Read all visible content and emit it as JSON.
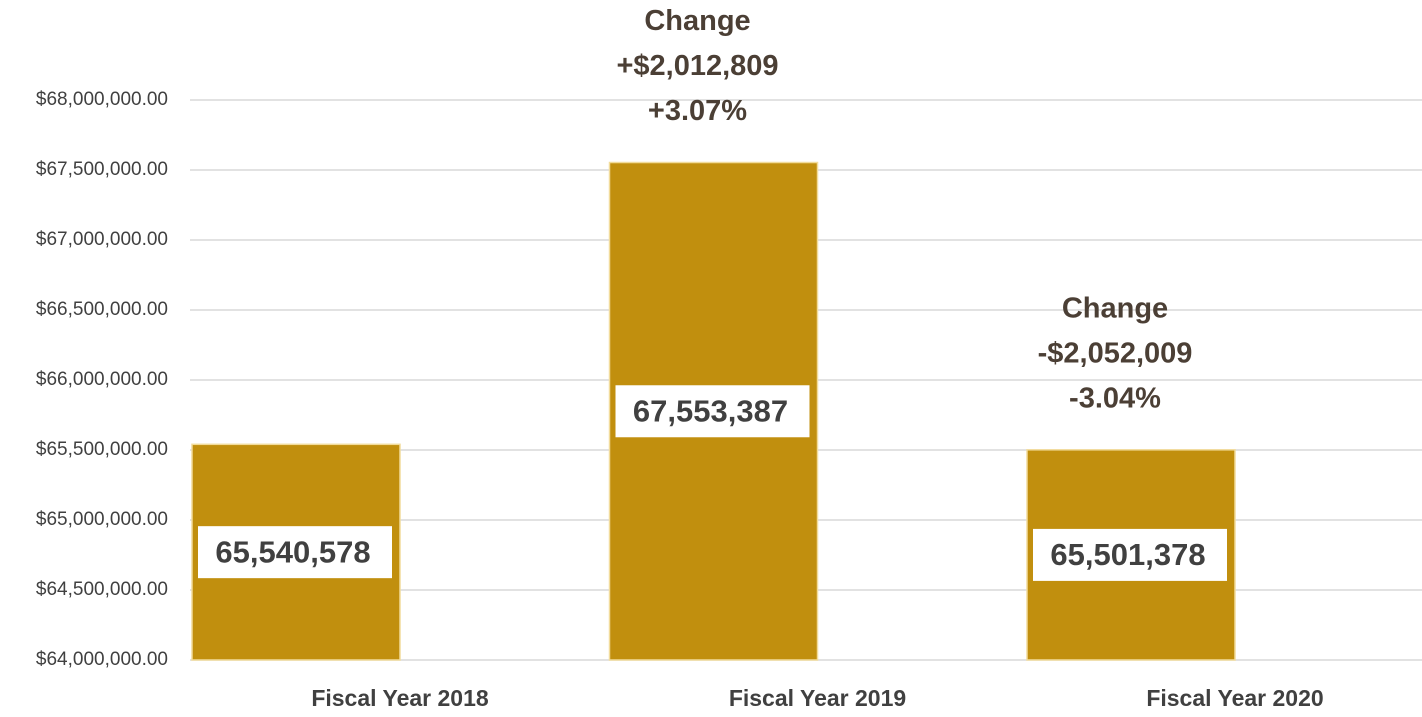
{
  "chart_data": {
    "type": "bar",
    "categories": [
      "Fiscal Year 2018",
      "Fiscal Year 2019",
      "Fiscal Year 2020"
    ],
    "values": [
      65540578,
      67553387,
      65501378
    ],
    "value_labels": [
      "65,540,578",
      "67,553,387",
      "65,501,378"
    ],
    "color": "#c18f0e",
    "ylim": [
      64000000,
      68000000
    ],
    "yticks": [
      {
        "value": 64000000,
        "label": "$64,000,000.00"
      },
      {
        "value": 64500000,
        "label": "$64,500,000.00"
      },
      {
        "value": 65000000,
        "label": "$65,000,000.00"
      },
      {
        "value": 65500000,
        "label": "$65,500,000.00"
      },
      {
        "value": 66000000,
        "label": "$66,000,000.00"
      },
      {
        "value": 66500000,
        "label": "$66,500,000.00"
      },
      {
        "value": 67000000,
        "label": "$67,000,000.00"
      },
      {
        "value": 67500000,
        "label": "$67,500,000.00"
      },
      {
        "value": 68000000,
        "label": "$68,000,000.00"
      }
    ],
    "grid": true,
    "annotations": [
      {
        "category": "Fiscal Year 2019",
        "lines": [
          "Change",
          "+$2,012,809",
          "+3.07%"
        ]
      },
      {
        "category": "Fiscal Year 2020",
        "lines": [
          "Change",
          "-$2,052,009",
          "-3.04%"
        ]
      }
    ]
  }
}
